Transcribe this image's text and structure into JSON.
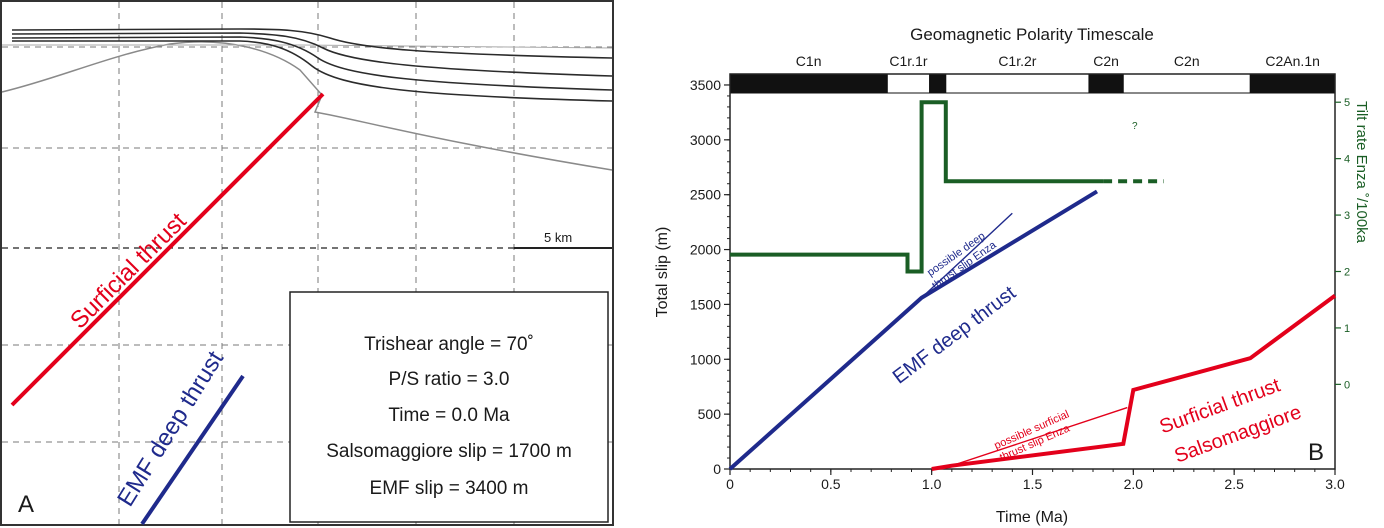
{
  "panel_a": {
    "letter": "A",
    "scale_label": "5 km",
    "surficial_label": "Surficial thrust",
    "deep_label": "EMF deep thrust",
    "params": {
      "trishear": "Trishear angle = 70˚",
      "ps_ratio": "P/S ratio = 3.0",
      "time": "Time = 0.0 Ma",
      "salso_slip": "Salsomaggiore slip = 1700 m",
      "emf_slip": "EMF slip = 3400 m"
    },
    "colors": {
      "surficial": "#e3001b",
      "deep": "#1f2a8c",
      "horizon": "#2b2b2b",
      "grey": "#8a8a8a",
      "grid": "#7a7a7a"
    }
  },
  "panel_b": {
    "letter": "B",
    "timescale_title": "Geomagnetic Polarity Timescale",
    "chrons": [
      {
        "label": "C1n",
        "start": 0.0,
        "end": 0.78,
        "normal": true
      },
      {
        "label": "C1r.1r",
        "start": 0.78,
        "end": 0.99,
        "normal": false
      },
      {
        "label": "",
        "start": 0.99,
        "end": 1.07,
        "normal": true
      },
      {
        "label": "C1r.2r",
        "start": 1.07,
        "end": 1.78,
        "normal": false
      },
      {
        "label": "C2n",
        "start": 1.78,
        "end": 1.95,
        "normal": true
      },
      {
        "label": "C2n",
        "start": 1.95,
        "end": 2.58,
        "normal": false
      },
      {
        "label": "C2An.1n",
        "start": 2.58,
        "end": 3.0,
        "normal": true
      }
    ],
    "annotations": {
      "deep_possible_line1": "possible deep",
      "deep_possible_line2": "thrust slip Enza",
      "deep_label": "EMF deep thrust",
      "surf_possible_line1": "possible surficial",
      "surf_possible_line2": "thrust slip Enza",
      "surf_label_line1": "Surficial thrust",
      "surf_label_line2": "Salsomaggiore",
      "question_mark": "?"
    }
  },
  "chart_data": {
    "type": "line",
    "title": "Geomagnetic Polarity Timescale",
    "xlabel": "Time (Ma)",
    "ylabel": "Total slip (m)",
    "y2label": "Tilt rate Enza ˚/100ka",
    "xlim": [
      0,
      3.0
    ],
    "ylim": [
      0,
      3600
    ],
    "y2lim": [
      -1.5,
      5.5
    ],
    "x_ticks": [
      "0",
      "0.5",
      "1.0",
      "1.5",
      "2.0",
      "2.5",
      "3.0"
    ],
    "x_tick_values": [
      0,
      0.5,
      1.0,
      1.5,
      2.0,
      2.5,
      3.0
    ],
    "y_ticks": [
      "0",
      "500",
      "1000",
      "1500",
      "2000",
      "2500",
      "3000",
      "3500"
    ],
    "y_tick_values": [
      0,
      500,
      1000,
      1500,
      2000,
      2500,
      3000,
      3500
    ],
    "y2_ticks": [
      "0",
      "1",
      "2",
      "3",
      "4",
      "5"
    ],
    "y2_tick_values": [
      0,
      1,
      2,
      3,
      4,
      5
    ],
    "series": [
      {
        "name": "EMF deep thrust",
        "color": "#1f2a8c",
        "axis": "left",
        "x": [
          0,
          0.95,
          1.82
        ],
        "y": [
          0,
          1560,
          2530
        ]
      },
      {
        "name": "possible deep thrust slip Enza",
        "color": "#1f2a8c",
        "axis": "left",
        "x": [
          0.95,
          1.4
        ],
        "y": [
          1560,
          2330
        ]
      },
      {
        "name": "Surficial thrust Salsomaggiore",
        "color": "#e3001b",
        "axis": "left",
        "x": [
          1.0,
          1.1,
          1.95,
          2.0,
          2.58,
          3.0
        ],
        "y": [
          0,
          30,
          230,
          720,
          1010,
          1580
        ]
      },
      {
        "name": "possible surficial thrust slip Enza",
        "color": "#e3001b",
        "axis": "left",
        "x": [
          1.05,
          1.97
        ],
        "y": [
          0,
          560
        ]
      },
      {
        "name": "Tilt rate Enza",
        "color": "#1a5e25",
        "axis": "right",
        "x": [
          0,
          0.88,
          0.88,
          0.95,
          0.95,
          1.07,
          1.07,
          1.4,
          1.4,
          1.85
        ],
        "y": [
          2.3,
          2.3,
          2.0,
          2.0,
          5.0,
          5.0,
          3.6,
          3.6,
          3.6,
          3.6
        ]
      },
      {
        "name": "Tilt rate Enza (uncertain)",
        "color": "#1a5e25",
        "axis": "right",
        "dashed": true,
        "x": [
          1.85,
          2.15
        ],
        "y": [
          3.6,
          3.6
        ]
      }
    ]
  }
}
